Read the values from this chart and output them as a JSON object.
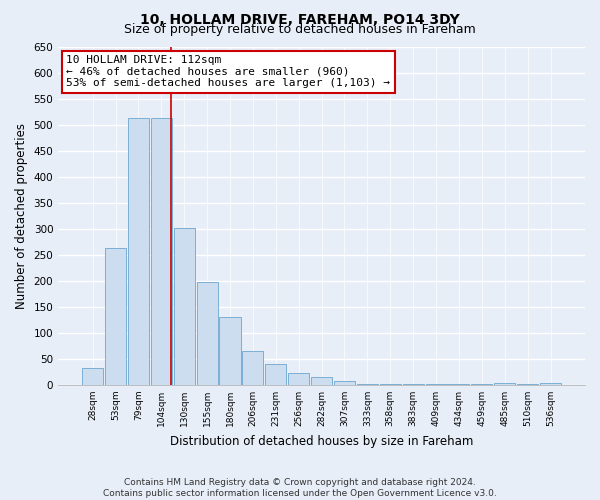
{
  "title": "10, HOLLAM DRIVE, FAREHAM, PO14 3DY",
  "subtitle": "Size of property relative to detached houses in Fareham",
  "xlabel": "Distribution of detached houses by size in Fareham",
  "ylabel": "Number of detached properties",
  "bar_labels": [
    "28sqm",
    "53sqm",
    "79sqm",
    "104sqm",
    "130sqm",
    "155sqm",
    "180sqm",
    "206sqm",
    "231sqm",
    "256sqm",
    "282sqm",
    "307sqm",
    "333sqm",
    "358sqm",
    "383sqm",
    "409sqm",
    "434sqm",
    "459sqm",
    "485sqm",
    "510sqm",
    "536sqm"
  ],
  "bar_values": [
    33,
    263,
    512,
    512,
    302,
    197,
    131,
    65,
    40,
    23,
    15,
    8,
    2,
    2,
    2,
    2,
    2,
    2,
    4,
    2,
    4
  ],
  "bar_color": "#ccddf0",
  "bar_edge_color": "#7aafd4",
  "vline_x": 3.42,
  "vline_color": "#cc0000",
  "annotation_text_line1": "10 HOLLAM DRIVE: 112sqm",
  "annotation_text_line2": "← 46% of detached houses are smaller (960)",
  "annotation_text_line3": "53% of semi-detached houses are larger (1,103) →",
  "annotation_box_color": "#ffffff",
  "annotation_box_edge": "#cc0000",
  "ylim": [
    0,
    650
  ],
  "yticks": [
    0,
    50,
    100,
    150,
    200,
    250,
    300,
    350,
    400,
    450,
    500,
    550,
    600,
    650
  ],
  "footnote": "Contains HM Land Registry data © Crown copyright and database right 2024.\nContains public sector information licensed under the Open Government Licence v3.0.",
  "bg_color": "#e8eef8",
  "plot_bg_color": "#e8eef8",
  "title_fontsize": 10,
  "subtitle_fontsize": 9,
  "xlabel_fontsize": 8.5,
  "ylabel_fontsize": 8.5,
  "footnote_fontsize": 6.5
}
